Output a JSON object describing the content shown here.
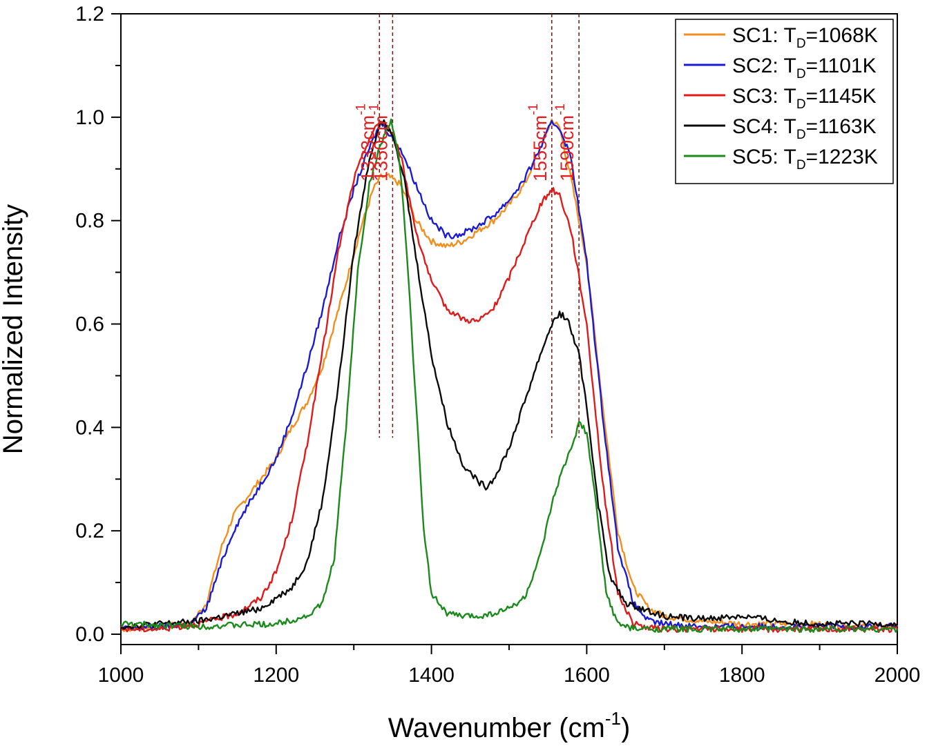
{
  "chart_data": {
    "type": "line",
    "title": "",
    "xlabel": "Wavenumber (cm",
    "xlabel_sup": "-1",
    "xlabel_close": ")",
    "ylabel": "Normalized Intensity",
    "xlim": [
      1000,
      2000
    ],
    "ylim": [
      -0.02,
      1.2
    ],
    "xticks": [
      1000,
      1200,
      1400,
      1600,
      1800,
      2000
    ],
    "xtick_labels": [
      "1000",
      "1200",
      "1400",
      "1600",
      "1800",
      "2000"
    ],
    "yticks": [
      0.0,
      0.2,
      0.4,
      0.6,
      0.8,
      1.0,
      1.2
    ],
    "ytick_labels": [
      "0.0",
      "0.2",
      "0.4",
      "0.6",
      "0.8",
      "1.0",
      "1.2"
    ],
    "grid": false,
    "legend_position": "top-right",
    "annotation_color": "#e02020",
    "annotations": [
      {
        "x": 1333,
        "label": "1333cm",
        "sup": "-1"
      },
      {
        "x": 1350,
        "label": "1350cm",
        "sup": "-1"
      },
      {
        "x": 1555,
        "label": "1555cm",
        "sup": "-1"
      },
      {
        "x": 1590,
        "label": "1590cm",
        "sup": "-1"
      }
    ],
    "series": [
      {
        "name": "SC1: T",
        "sub": "D",
        "suffix": "=1068K",
        "color": "#f28e1c",
        "x": [
          1000,
          1050,
          1090,
          1110,
          1130,
          1145,
          1160,
          1180,
          1200,
          1220,
          1240,
          1260,
          1275,
          1290,
          1310,
          1325,
          1335,
          1345,
          1360,
          1380,
          1400,
          1420,
          1440,
          1460,
          1480,
          1500,
          1520,
          1540,
          1555,
          1565,
          1580,
          1600,
          1620,
          1640,
          1660,
          1680,
          1700,
          1750,
          1800,
          1850,
          1900,
          1950,
          2000
        ],
        "y": [
          0.01,
          0.015,
          0.02,
          0.06,
          0.17,
          0.23,
          0.26,
          0.3,
          0.34,
          0.4,
          0.45,
          0.52,
          0.6,
          0.68,
          0.79,
          0.86,
          0.885,
          0.885,
          0.87,
          0.8,
          0.76,
          0.75,
          0.76,
          0.78,
          0.8,
          0.83,
          0.87,
          0.94,
          0.995,
          0.98,
          0.88,
          0.72,
          0.45,
          0.2,
          0.09,
          0.05,
          0.035,
          0.025,
          0.02,
          0.02,
          0.02,
          0.015,
          0.015
        ]
      },
      {
        "name": "SC2: T",
        "sub": "D",
        "suffix": "=1101K",
        "color": "#1a1ad4",
        "x": [
          1000,
          1050,
          1090,
          1110,
          1130,
          1145,
          1160,
          1180,
          1200,
          1220,
          1240,
          1260,
          1280,
          1300,
          1320,
          1335,
          1345,
          1360,
          1380,
          1400,
          1420,
          1440,
          1460,
          1480,
          1500,
          1520,
          1540,
          1555,
          1565,
          1580,
          1600,
          1620,
          1640,
          1660,
          1680,
          1700,
          1750,
          1800,
          1850,
          1900,
          1950,
          2000
        ],
        "y": [
          0.01,
          0.015,
          0.02,
          0.05,
          0.14,
          0.2,
          0.24,
          0.29,
          0.34,
          0.42,
          0.52,
          0.63,
          0.76,
          0.86,
          0.94,
          0.99,
          0.97,
          0.94,
          0.87,
          0.8,
          0.77,
          0.775,
          0.79,
          0.81,
          0.84,
          0.88,
          0.94,
          0.99,
          0.98,
          0.92,
          0.72,
          0.43,
          0.17,
          0.06,
          0.025,
          0.02,
          0.015,
          0.015,
          0.015,
          0.015,
          0.015,
          0.015
        ]
      },
      {
        "name": "SC3: T",
        "sub": "D",
        "suffix": "=1145K",
        "color": "#e01919",
        "x": [
          1000,
          1050,
          1100,
          1150,
          1180,
          1200,
          1220,
          1240,
          1260,
          1280,
          1300,
          1320,
          1335,
          1345,
          1360,
          1380,
          1400,
          1420,
          1440,
          1460,
          1480,
          1500,
          1520,
          1540,
          1555,
          1565,
          1580,
          1600,
          1620,
          1640,
          1660,
          1680,
          1700,
          1750,
          1800,
          1850,
          1900,
          1950,
          2000
        ],
        "y": [
          0.01,
          0.01,
          0.02,
          0.04,
          0.07,
          0.12,
          0.22,
          0.37,
          0.55,
          0.74,
          0.88,
          0.96,
          0.995,
          0.98,
          0.93,
          0.78,
          0.68,
          0.63,
          0.61,
          0.605,
          0.63,
          0.69,
          0.76,
          0.83,
          0.86,
          0.85,
          0.78,
          0.6,
          0.3,
          0.08,
          0.02,
          0.012,
          0.01,
          0.01,
          0.01,
          0.01,
          0.01,
          0.01,
          0.01
        ]
      },
      {
        "name": "SC4: T",
        "sub": "D",
        "suffix": "=1163K",
        "color": "#0a0a0a",
        "x": [
          1000,
          1050,
          1100,
          1150,
          1180,
          1200,
          1220,
          1240,
          1260,
          1280,
          1300,
          1320,
          1335,
          1350,
          1365,
          1380,
          1400,
          1420,
          1440,
          1460,
          1470,
          1480,
          1500,
          1520,
          1540,
          1555,
          1565,
          1575,
          1590,
          1600,
          1615,
          1630,
          1650,
          1670,
          1700,
          1750,
          1800,
          1850,
          1900,
          1950,
          2000
        ],
        "y": [
          0.015,
          0.02,
          0.025,
          0.04,
          0.05,
          0.07,
          0.09,
          0.14,
          0.26,
          0.48,
          0.74,
          0.92,
          0.995,
          0.97,
          0.88,
          0.73,
          0.54,
          0.41,
          0.33,
          0.295,
          0.285,
          0.3,
          0.36,
          0.45,
          0.54,
          0.6,
          0.62,
          0.61,
          0.54,
          0.44,
          0.25,
          0.11,
          0.06,
          0.05,
          0.035,
          0.03,
          0.035,
          0.025,
          0.02,
          0.02,
          0.02
        ]
      },
      {
        "name": "SC5: T",
        "sub": "D",
        "suffix": "=1223K",
        "color": "#1a8a1a",
        "x": [
          1000,
          1100,
          1200,
          1240,
          1260,
          1275,
          1290,
          1305,
          1320,
          1335,
          1348,
          1360,
          1370,
          1380,
          1390,
          1400,
          1420,
          1440,
          1460,
          1480,
          1500,
          1520,
          1540,
          1555,
          1565,
          1580,
          1590,
          1600,
          1612,
          1625,
          1640,
          1660,
          1700,
          1800,
          1900,
          2000
        ],
        "y": [
          0.02,
          0.015,
          0.02,
          0.035,
          0.06,
          0.15,
          0.4,
          0.7,
          0.87,
          0.95,
          0.995,
          0.9,
          0.7,
          0.45,
          0.2,
          0.08,
          0.04,
          0.035,
          0.035,
          0.04,
          0.05,
          0.07,
          0.15,
          0.25,
          0.3,
          0.36,
          0.41,
          0.39,
          0.25,
          0.08,
          0.02,
          0.01,
          0.01,
          0.01,
          0.01,
          0.01
        ]
      }
    ]
  }
}
